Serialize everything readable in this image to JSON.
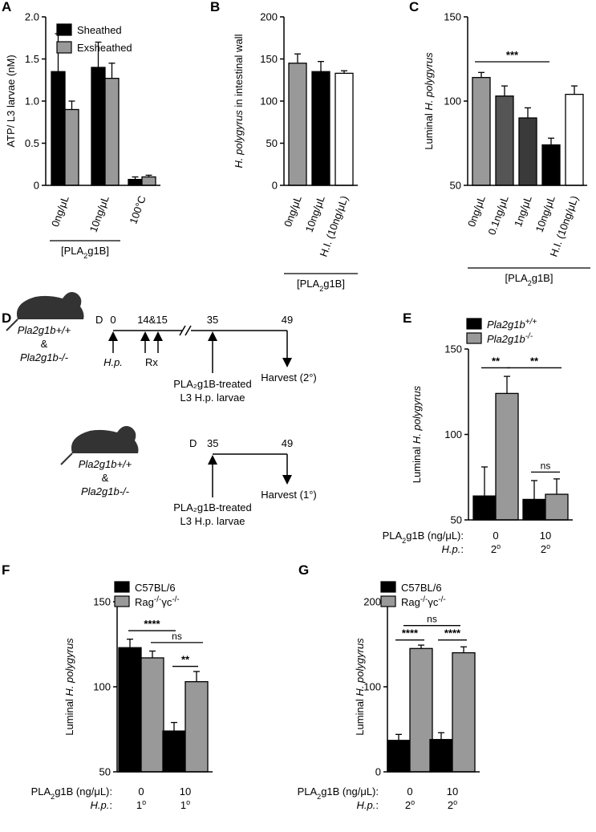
{
  "colors": {
    "black": "#000000",
    "dark_gray": "#3a3a3a",
    "mid_gray": "#555555",
    "gray": "#999999",
    "white": "#ffffff",
    "mouse": "#333333"
  },
  "panel_letters": [
    "A",
    "B",
    "C",
    "D",
    "E",
    "F",
    "G"
  ],
  "chart_data": [
    {
      "panel": "A",
      "type": "bar",
      "ylabel": "ATP/ L3 larvae (nM)",
      "ylim": [
        0,
        2
      ],
      "yticks": [
        "0",
        "0.5",
        "1.0",
        "1.5",
        "2.0"
      ],
      "categories": [
        "0ng/μL",
        "10ng/μL",
        "100°C"
      ],
      "group_label": "[PLA₂g1B]",
      "legend": [
        "Sheathed",
        "Exsheathed"
      ],
      "series": [
        {
          "name": "Sheathed",
          "color": "#000000",
          "values": [
            1.35,
            1.4,
            0.07
          ],
          "errors": [
            0.45,
            0.3,
            0.03
          ]
        },
        {
          "name": "Exsheathed",
          "color": "#999999",
          "values": [
            0.9,
            1.27,
            0.1
          ],
          "errors": [
            0.1,
            0.18,
            0.02
          ]
        }
      ]
    },
    {
      "panel": "B",
      "type": "bar",
      "ylabel": "H. polygyrus in intestinal wall",
      "ylim": [
        0,
        200
      ],
      "yticks": [
        "0",
        "50",
        "100",
        "150",
        "200"
      ],
      "categories": [
        "0ng/μL",
        "10ng/μL",
        "H.I. (10ng/μL)"
      ],
      "group_label": "[PLA₂g1B]",
      "values": [
        145,
        135,
        133
      ],
      "errors": [
        11,
        12,
        3
      ],
      "colors": [
        "#999999",
        "#000000",
        "#ffffff"
      ]
    },
    {
      "panel": "C",
      "type": "bar",
      "ylabel": "Luminal H. polygyrus",
      "ylim": [
        50,
        150
      ],
      "yticks": [
        "50",
        "100",
        "150"
      ],
      "categories": [
        "0ng/μL",
        "0.1ng/μL",
        "1ng/μL",
        "10ng/μL",
        "H.I. (10ng/μL)"
      ],
      "group_label": "[PLA₂g1B]",
      "values": [
        114,
        103,
        90,
        74,
        104
      ],
      "errors": [
        3,
        6,
        6,
        4,
        5
      ],
      "colors": [
        "#999999",
        "#555555",
        "#3a3a3a",
        "#000000",
        "#ffffff"
      ],
      "significance": [
        {
          "label": "***",
          "from": 0,
          "to": 3
        }
      ]
    },
    {
      "panel": "E",
      "type": "bar",
      "ylabel": "Luminal H. polygyrus",
      "ylim": [
        50,
        150
      ],
      "yticks": [
        "50",
        "100",
        "150"
      ],
      "legend": [
        "Pla2g1b+/+",
        "Pla2g1b-/-"
      ],
      "row_labels": [
        "PLA₂g1B (ng/μL):",
        "H.p.:"
      ],
      "groups": [
        {
          "dose": "0",
          "hp": "2°"
        },
        {
          "dose": "10",
          "hp": "2°"
        }
      ],
      "series": [
        {
          "name": "Pla2g1b+/+",
          "color": "#000000",
          "values": [
            64,
            62
          ],
          "errors": [
            17,
            11
          ]
        },
        {
          "name": "Pla2g1b-/-",
          "color": "#999999",
          "values": [
            124,
            65
          ],
          "errors": [
            10,
            9
          ]
        }
      ],
      "significance": [
        {
          "label": "**",
          "level": 139
        },
        {
          "label": "**",
          "level": 139
        },
        {
          "label": "ns",
          "level": 78
        }
      ]
    },
    {
      "panel": "F",
      "type": "bar",
      "ylabel": "Luminal H. polygyrus",
      "ylim": [
        50,
        150
      ],
      "yticks": [
        "50",
        "100",
        "150"
      ],
      "legend": [
        "C57BL/6",
        "Rag-/-γc-/-"
      ],
      "row_labels": [
        "PLA₂g1B (ng/μL):",
        "H.p.:"
      ],
      "groups": [
        {
          "dose": "0",
          "hp": "1°"
        },
        {
          "dose": "10",
          "hp": "1°"
        }
      ],
      "series": [
        {
          "name": "C57BL/6",
          "color": "#000000",
          "values": [
            123,
            74
          ],
          "errors": [
            5,
            5
          ]
        },
        {
          "name": "Rag-/-γc-/-",
          "color": "#999999",
          "values": [
            117,
            103
          ],
          "errors": [
            4,
            6
          ]
        }
      ],
      "significance": [
        {
          "label": "****",
          "level": 133
        },
        {
          "label": "ns",
          "level": 126
        },
        {
          "label": "**",
          "level": 112
        }
      ]
    },
    {
      "panel": "G",
      "type": "bar",
      "ylabel": "Luminal H. polygyrus",
      "ylim": [
        0,
        200
      ],
      "yticks": [
        "0",
        "100",
        "200"
      ],
      "legend": [
        "C57BL/6",
        "Rag-/-γc-/-"
      ],
      "row_labels": [
        "PLA₂g1B (ng/μL):",
        "H.p.:"
      ],
      "groups": [
        {
          "dose": "0",
          "hp": "2°"
        },
        {
          "dose": "10",
          "hp": "2°"
        }
      ],
      "series": [
        {
          "name": "C57BL/6",
          "color": "#000000",
          "values": [
            37,
            38
          ],
          "errors": [
            7,
            8
          ]
        },
        {
          "name": "Rag-/-γc-/-",
          "color": "#999999",
          "values": [
            145,
            140
          ],
          "errors": [
            4,
            7
          ]
        }
      ],
      "significance": [
        {
          "label": "ns",
          "level": 172
        },
        {
          "label": "****",
          "level": 155
        },
        {
          "label": "****",
          "level": 155
        }
      ]
    }
  ],
  "timeline": {
    "panel": "D",
    "mouse_labels": [
      "Pla2g1b+/+",
      "&",
      "Pla2g1b-/-"
    ],
    "top": {
      "day_prefix": "D",
      "days": [
        "0",
        "14&15",
        "35",
        "49"
      ],
      "events": [
        "H.p.",
        "Rx"
      ],
      "treatment_line1": "PLA₂g1B-treated",
      "treatment_line2": "L3 H.p. larvae",
      "harvest": "Harvest (2°)"
    },
    "bottom": {
      "day_prefix": "D",
      "days": [
        "35",
        "49"
      ],
      "treatment_line1": "PLA₂g1B-treated",
      "treatment_line2": "L3 H.p. larvae",
      "harvest": "Harvest (1°)"
    }
  }
}
